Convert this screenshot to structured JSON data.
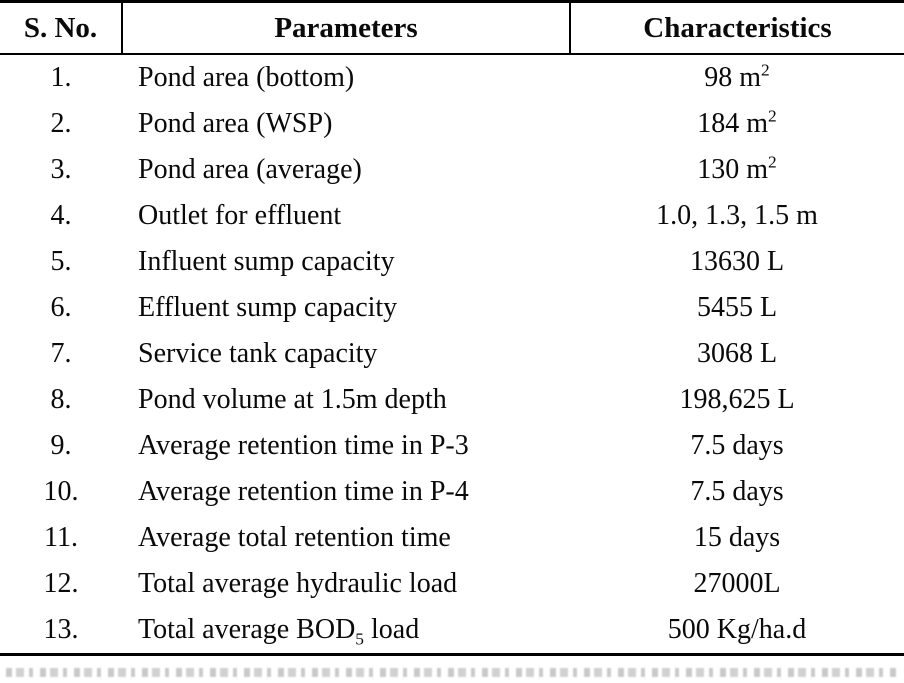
{
  "table": {
    "headers": [
      "S. No.",
      "Parameters",
      "Characteristics"
    ],
    "rows": [
      {
        "sno": "1.",
        "param": [
          {
            "t": "Pond area (bottom)"
          }
        ],
        "value": [
          {
            "t": "98 m"
          },
          {
            "sup": "2"
          }
        ]
      },
      {
        "sno": "2.",
        "param": [
          {
            "t": "Pond area (WSP)"
          }
        ],
        "value": [
          {
            "t": "184 m"
          },
          {
            "sup": "2"
          }
        ]
      },
      {
        "sno": "3.",
        "param": [
          {
            "t": "Pond area (average)"
          }
        ],
        "value": [
          {
            "t": "130 m"
          },
          {
            "sup": "2"
          }
        ]
      },
      {
        "sno": "4.",
        "param": [
          {
            "t": "Outlet for effluent"
          }
        ],
        "value": [
          {
            "t": "1.0, 1.3, 1.5 m"
          }
        ]
      },
      {
        "sno": "5.",
        "param": [
          {
            "t": "Influent sump capacity"
          }
        ],
        "value": [
          {
            "t": "13630 L"
          }
        ]
      },
      {
        "sno": "6.",
        "param": [
          {
            "t": "Effluent sump capacity"
          }
        ],
        "value": [
          {
            "t": "5455 L"
          }
        ]
      },
      {
        "sno": "7.",
        "param": [
          {
            "t": "Service tank capacity"
          }
        ],
        "value": [
          {
            "t": "3068 L"
          }
        ]
      },
      {
        "sno": "8.",
        "param": [
          {
            "t": "Pond volume at 1.5m depth"
          }
        ],
        "value": [
          {
            "t": "198,625 L"
          }
        ]
      },
      {
        "sno": "9.",
        "param": [
          {
            "t": "Average retention time in P-3"
          }
        ],
        "value": [
          {
            "t": "7.5 days"
          }
        ]
      },
      {
        "sno": "10.",
        "param": [
          {
            "t": "Average retention time in P-4"
          }
        ],
        "value": [
          {
            "t": "7.5 days"
          }
        ]
      },
      {
        "sno": "11.",
        "param": [
          {
            "t": "Average total retention time"
          }
        ],
        "value": [
          {
            "t": "15 days"
          }
        ]
      },
      {
        "sno": "12.",
        "param": [
          {
            "t": "Total average hydraulic load"
          }
        ],
        "value": [
          {
            "t": "27000L"
          }
        ]
      },
      {
        "sno": "13.",
        "param": [
          {
            "t": "Total average BOD"
          },
          {
            "sub": "5"
          },
          {
            "t": " load"
          }
        ],
        "value": [
          {
            "t": "500 Kg/ha.d"
          }
        ]
      }
    ]
  },
  "colors": {
    "text": "#0a0a0a",
    "rule": "#000000",
    "background": "#ffffff"
  }
}
